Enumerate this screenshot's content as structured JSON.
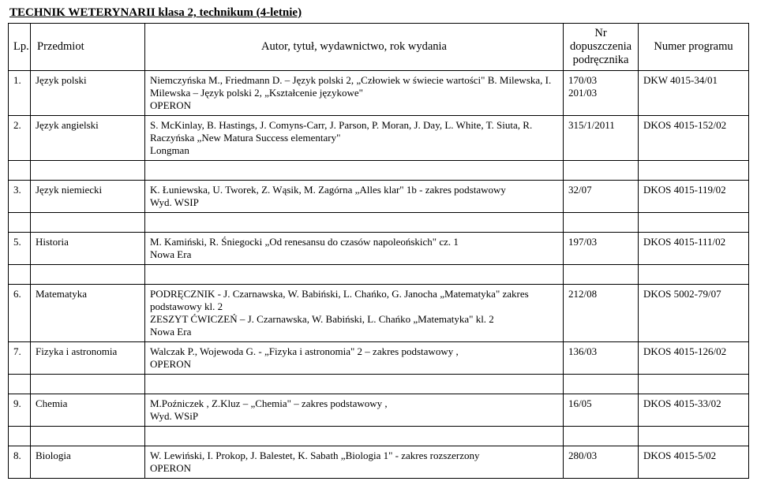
{
  "title": "TECHNIK WETERYNARII  klasa 2, technikum (4-letnie)",
  "header": {
    "lp": "Lp.",
    "subject": "Przedmiot",
    "author": "Autor, tytuł, wydawnictwo, rok wydania",
    "nr": "Nr dopuszczenia podręcznika",
    "program": "Numer programu"
  },
  "rows": [
    {
      "lp": "1.",
      "subject": "Język polski",
      "author": "Niemczyńska M., Friedmann D. – Język polski 2, „Człowiek w świecie wartości\" B. Milewska, I. Milewska – Język polski 2, „Kształcenie językowe\"\nOPERON",
      "nr": "170/03\n201/03",
      "program": "DKW 4015-34/01"
    },
    {
      "lp": "2.",
      "subject": "Język angielski",
      "author": "S. McKinlay, B. Hastings, J. Comyns-Carr, J. Parson, P. Moran, J. Day, L. White, T. Siuta, R. Raczyńska „New Matura Success elementary\"\nLongman",
      "nr": "315/1/2011",
      "program": "DKOS 4015-152/02"
    },
    {
      "lp": "3.",
      "subject": "Język niemiecki",
      "author": "K. Łuniewska, U. Tworek, Z. Wąsik, M. Zagórna „Alles klar\" 1b - zakres podstawowy\nWyd. WSIP",
      "nr": "32/07",
      "program": "DKOS 4015-119/02"
    },
    {
      "lp": "5.",
      "subject": "Historia",
      "author": "M. Kamiński, R. Śniegocki „Od renesansu do czasów napoleońskich\" cz. 1\nNowa Era",
      "nr": "197/03",
      "program": "DKOS 4015-111/02"
    },
    {
      "lp": "6.",
      "subject": "Matematyka",
      "author": "PODRĘCZNIK - J. Czarnawska, W. Babiński, L. Chańko, G. Janocha „Matematyka\" zakres podstawowy kl. 2\nZESZYT ĆWICZEŃ – J. Czarnawska, W. Babiński, L. Chańko „Matematyka\" kl. 2\nNowa Era",
      "nr": "212/08",
      "program": "DKOS 5002-79/07"
    },
    {
      "lp": "7.",
      "subject": "Fizyka i astronomia",
      "author": "Walczak P., Wojewoda G. - „Fizyka  i astronomia\" 2 – zakres podstawowy ,\nOPERON",
      "nr": "136/03",
      "program": "DKOS 4015-126/02"
    },
    {
      "lp": "9.",
      "subject": "Chemia",
      "author": "M.Poźniczek , Z.Kluz  – „Chemia\" – zakres podstawowy ,\nWyd. WSiP",
      "nr": "16/05",
      "program": "DKOS 4015-33/02"
    },
    {
      "lp": "8.",
      "subject": "Biologia",
      "author": "W. Lewiński, I. Prokop, J. Balestet, K. Sabath „Biologia 1\" - zakres rozszerzony\nOPERON",
      "nr": "280/03",
      "program": "DKOS 4015-5/02"
    }
  ]
}
